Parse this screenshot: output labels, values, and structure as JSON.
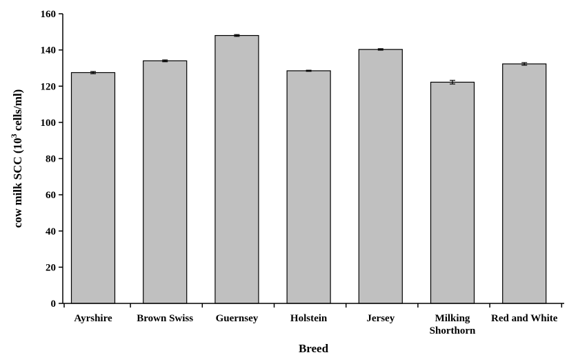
{
  "chart_data": {
    "type": "bar",
    "categories": [
      [
        "Ayrshire"
      ],
      [
        "Brown Swiss"
      ],
      [
        "Guernsey"
      ],
      [
        "Holstein"
      ],
      [
        "Jersey"
      ],
      [
        "Milking",
        "Shorthorn"
      ],
      [
        "Red and White"
      ]
    ],
    "values": [
      127.5,
      134.0,
      148.0,
      128.5,
      140.3,
      122.2,
      132.3
    ],
    "errors": [
      0.6,
      0.5,
      0.5,
      0.3,
      0.4,
      1.0,
      0.7
    ],
    "xlabel": "Breed",
    "ylabel": {
      "prefix": "cow milk SCC (10",
      "superscript": "3",
      "suffix": " cells/ml)"
    },
    "ylim": [
      0,
      160
    ],
    "yticks": [
      "0",
      "20",
      "40",
      "60",
      "80",
      "100",
      "120",
      "140",
      "160"
    ],
    "grid": false,
    "legend": "none",
    "bar_color": "#c0c0c0",
    "edge_color": "#000000"
  }
}
